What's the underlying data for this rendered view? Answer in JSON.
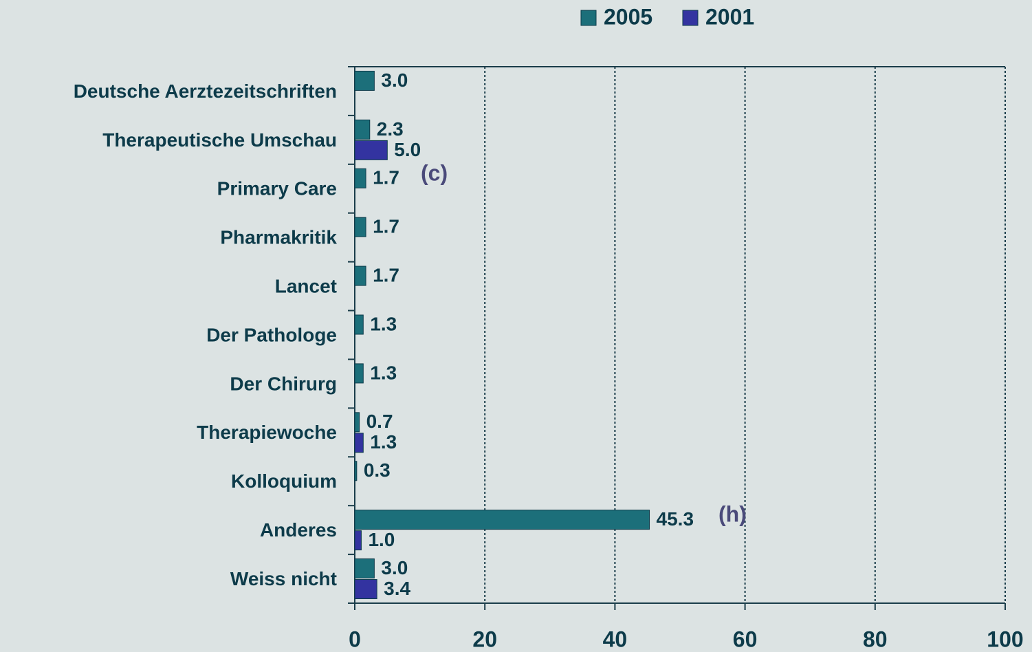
{
  "chart_data": {
    "type": "hbar",
    "categories": [
      "Deutsche Aerztezeitschriften",
      "Therapeutische Umschau",
      "Primary Care",
      "Pharmakritik",
      "Lancet",
      "Der Pathologe",
      "Der Chirurg",
      "Therapiewoche",
      "Kolloquium",
      "Anderes",
      "Weiss nicht"
    ],
    "series": [
      {
        "name": "2005",
        "color": "#1c6f7a",
        "values": [
          3.0,
          2.3,
          1.7,
          1.7,
          1.7,
          1.3,
          1.3,
          0.7,
          0.3,
          45.3,
          3.0
        ],
        "value_labels": [
          "3.0",
          "2.3",
          "1.7",
          "1.7",
          "1.7",
          "1.3",
          "1.3",
          "0.7",
          "0.3",
          "45.3",
          "3.0"
        ]
      },
      {
        "name": "2001",
        "color": "#3333a0",
        "values": [
          null,
          5.0,
          null,
          null,
          null,
          null,
          null,
          1.3,
          null,
          1.0,
          3.4
        ],
        "value_labels": [
          null,
          "5.0",
          null,
          null,
          null,
          null,
          null,
          "1.3",
          null,
          "1.0",
          "3.4"
        ]
      }
    ],
    "xlim": [
      0,
      100
    ],
    "xticks": [
      0,
      20,
      40,
      60,
      80,
      100
    ],
    "grid": true,
    "legend": "top",
    "annotations": [
      "(c)",
      "(h)"
    ]
  }
}
